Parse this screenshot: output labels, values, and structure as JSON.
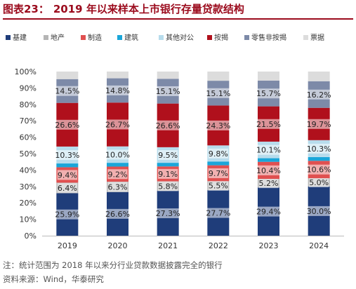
{
  "title": {
    "number": "图表23：",
    "text": "2019 年以来样本上市银行存量贷款结构"
  },
  "footer": {
    "note": "注：统计范围为 2018 年以来分行业贷款数据披露完全的银行",
    "source": "资料来源：Wind，华泰研究"
  },
  "chart_data": {
    "type": "stacked_bar",
    "categories": [
      "2019",
      "2020",
      "2021",
      "2022",
      "2023",
      "2024"
    ],
    "yticks": [
      "0%",
      "10%",
      "20%",
      "30%",
      "40%",
      "50%",
      "60%",
      "70%",
      "80%",
      "90%",
      "100%"
    ],
    "ylim": [
      0,
      100
    ],
    "legend_position": "top",
    "series": [
      {
        "name": "基建",
        "color": "#1f3d7a",
        "values": [
          25.9,
          26.6,
          27.3,
          27.7,
          29.4,
          30.0
        ],
        "labels": [
          "25.9%",
          "26.6%",
          "27.3%",
          "27.7%",
          "29.4%",
          "30.0%"
        ]
      },
      {
        "name": "地产",
        "color": "#b5b5b5",
        "values": [
          6.4,
          6.3,
          5.8,
          5.5,
          5.2,
          5.0
        ],
        "labels": [
          "6.4%",
          "6.3%",
          "5.8%",
          "5.5%",
          "5.2%",
          "5.0%"
        ]
      },
      {
        "name": "制造",
        "color": "#e05050",
        "values": [
          9.4,
          9.2,
          9.1,
          9.7,
          10.4,
          10.6
        ],
        "labels": [
          "9.4%",
          "9.2%",
          "9.1%",
          "9.7%",
          "10.4%",
          "10.6%"
        ]
      },
      {
        "name": "建筑",
        "color": "#1aa6d9",
        "values": [
          2.3,
          2.3,
          2.2,
          2.3,
          2.2,
          2.3
        ],
        "labels": [
          "",
          "",
          "",
          "",
          "",
          ""
        ]
      },
      {
        "name": "其他对公",
        "color": "#b7dcec",
        "values": [
          10.3,
          10.0,
          9.5,
          9.8,
          10.1,
          10.3
        ],
        "labels": [
          "10.3%",
          "10.0%",
          "9.5%",
          "9.8%",
          "10.1%",
          "10.3%"
        ]
      },
      {
        "name": "按揭",
        "color": "#b0101c",
        "values": [
          26.6,
          26.7,
          26.6,
          24.3,
          21.5,
          19.7
        ],
        "labels": [
          "26.6%",
          "26.7%",
          "26.6%",
          "24.3%",
          "21.5%",
          "19.7%"
        ]
      },
      {
        "name": "零售非按揭",
        "color": "#7d8aa8",
        "values": [
          14.5,
          14.8,
          15.1,
          15.1,
          15.7,
          16.2
        ],
        "labels": [
          "14.5%",
          "14.8%",
          "15.1%",
          "15.1%",
          "15.7%",
          "16.2%"
        ]
      },
      {
        "name": "票据",
        "color": "#dcdcdc",
        "values": [
          4.6,
          4.1,
          4.4,
          5.6,
          5.5,
          5.9
        ],
        "labels": [
          "",
          "",
          "",
          "",
          "",
          ""
        ]
      }
    ]
  }
}
